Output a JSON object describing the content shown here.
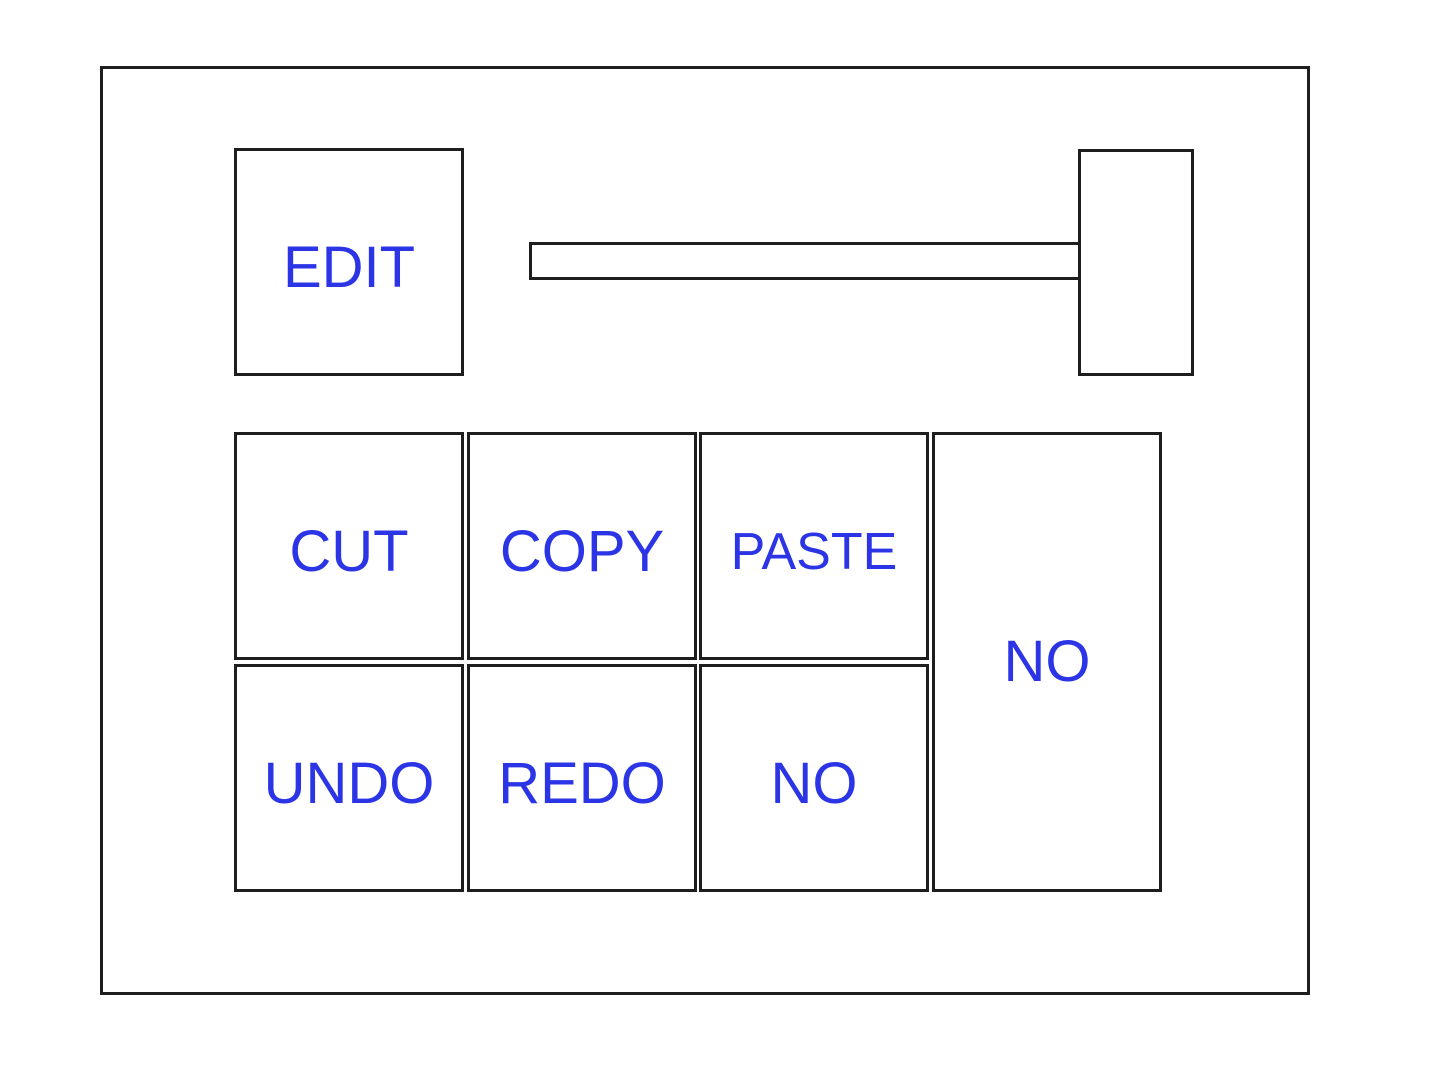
{
  "panel": {
    "edit_label": "EDIT",
    "slider": {
      "value": 1.0
    },
    "keys": {
      "cut": "CUT",
      "copy": "COPY",
      "paste": "PASTE",
      "no_tall": "NO",
      "undo": "UNDO",
      "redo": "REDO",
      "no_small": "NO"
    }
  },
  "colors": {
    "label": "#2b35e6",
    "border": "#1e1e1e",
    "background": "#ffffff"
  }
}
